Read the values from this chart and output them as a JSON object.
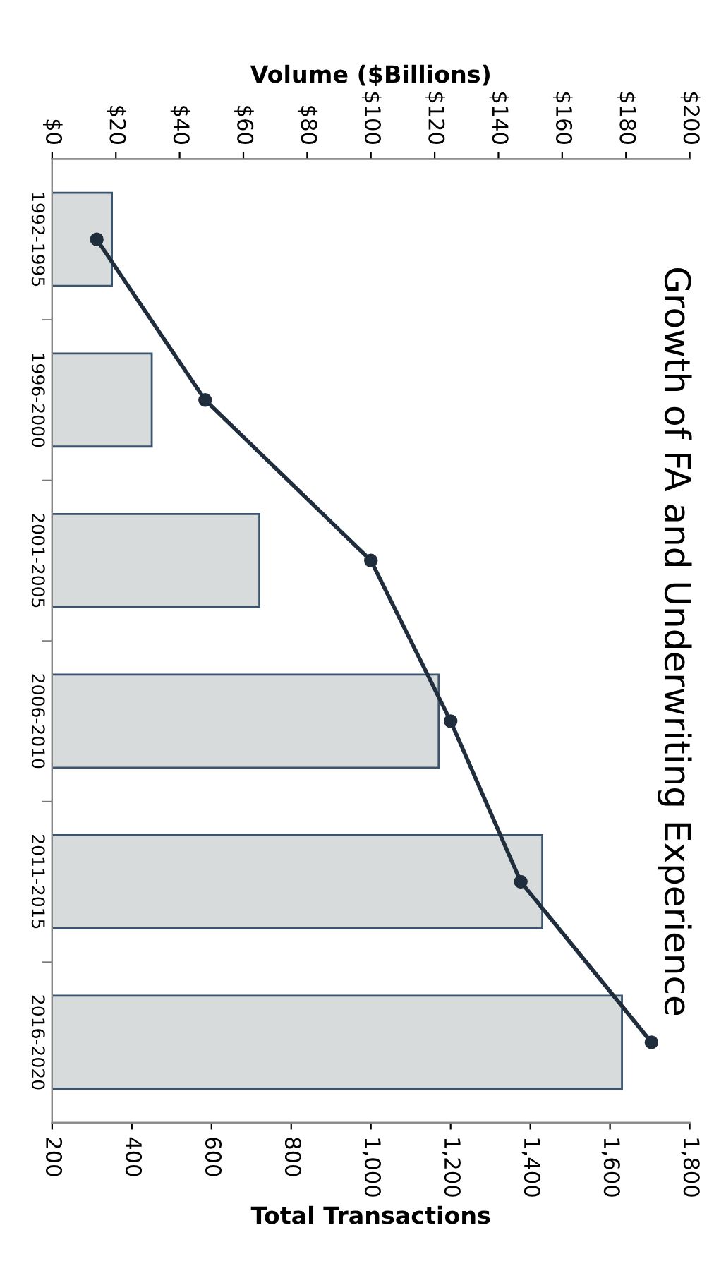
{
  "chart_data": {
    "type": "bar",
    "orientation": "horizontal",
    "title": "Growth of FA and Underwriting Experience",
    "xlabel": "Total Transactions",
    "x2label": "Volume ($Billions)",
    "categories": [
      "1992-1995",
      "1996-2000",
      "2001-2005",
      "2006-2010",
      "2011-2015",
      "2016-2020"
    ],
    "series": [
      {
        "color": "#d8dbdb",
        "values": [
          350,
          450,
          720,
          1170,
          1430,
          1630
        ]
      },
      {
        "type": "line",
        "axis": "x2",
        "color": "#1f2d3d",
        "marker": "circle",
        "values": [
          14,
          48,
          100,
          125,
          147,
          188
        ]
      }
    ],
    "xlim": [
      200,
      1800
    ],
    "xticks": [
      200,
      400,
      600,
      800,
      {
        "value": 1000,
        "label": "1,000"
      },
      {
        "value": 1200,
        "label": "1,200"
      },
      {
        "value": 1400,
        "label": "1,400"
      },
      {
        "value": 1600,
        "label": "1,600"
      },
      {
        "value": 1800,
        "label": "1,800"
      }
    ],
    "x2lim": [
      0,
      200
    ],
    "x2ticks": [
      {
        "value": 0,
        "label": "$0"
      },
      {
        "value": 20,
        "label": "$20"
      },
      {
        "value": 40,
        "label": "$40"
      },
      {
        "value": 60,
        "label": "$60"
      },
      {
        "value": 80,
        "label": "$80"
      },
      {
        "value": 100,
        "label": "$100"
      },
      {
        "value": 120,
        "label": "$120"
      },
      {
        "value": 140,
        "label": "$140"
      },
      {
        "value": 160,
        "label": "$160"
      },
      {
        "value": 180,
        "label": "$180"
      },
      {
        "value": 200,
        "label": "$200"
      }
    ],
    "grid": false,
    "legend": false
  }
}
